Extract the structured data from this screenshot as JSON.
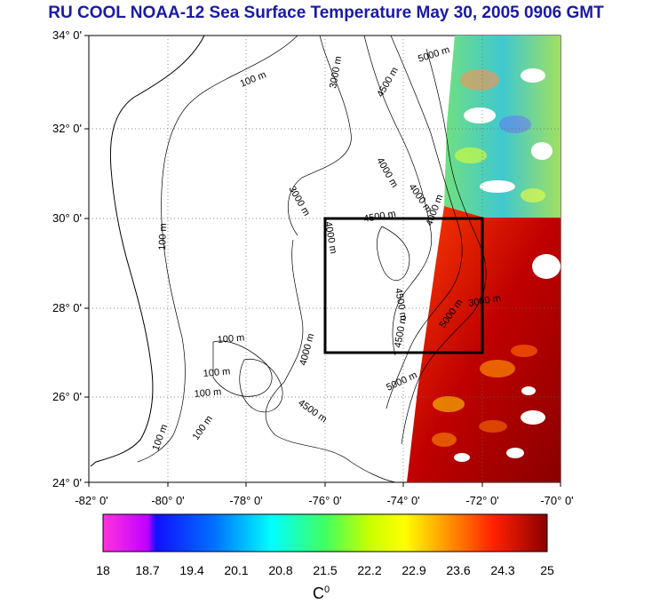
{
  "title": "RU COOL  NOAA-12 Sea Surface Temperature May 30, 2005 0906 GMT",
  "lat_ticks": [
    "34° 0'",
    "32° 0'",
    "30° 0'",
    "28° 0'",
    "26° 0'",
    "24° 0'"
  ],
  "lon_ticks": [
    "-82° 0'",
    "-80° 0'",
    "-78° 0'",
    "-76° 0'",
    "-74° 0'",
    "-72° 0'",
    "-70° 0'"
  ],
  "contour_labels": [
    "100 m",
    "100 m",
    "100 m",
    "100 m",
    "100 m",
    "100 m",
    "100 m",
    "3000 m",
    "3000 m",
    "4500 m",
    "4000 m",
    "4000 m",
    "4000 m",
    "5000 m",
    "5000 m",
    "5000 m",
    "4500 m",
    "4500 m",
    "4500 m",
    "4000 m",
    "4000 m",
    "3000 m",
    "4500 m"
  ],
  "colorbar": {
    "unit": "C",
    "unit_sup": "0",
    "labels": [
      "18",
      "18.7",
      "19.4",
      "20.1",
      "20.8",
      "21.5",
      "22.2",
      "22.9",
      "23.6",
      "24.3",
      "25"
    ],
    "colors": [
      "#ff33dd",
      "#c000ff",
      "#0000ff",
      "#0088ff",
      "#00eeff",
      "#00ff80",
      "#b0ff00",
      "#ffff00",
      "#ff8000",
      "#ff2000",
      "#900000"
    ]
  },
  "box": {
    "lon_min": -76,
    "lon_max": -72,
    "lat_min": 27,
    "lat_max": 30
  },
  "colors": {
    "title": "#1a1aa6",
    "box": "#000000"
  }
}
